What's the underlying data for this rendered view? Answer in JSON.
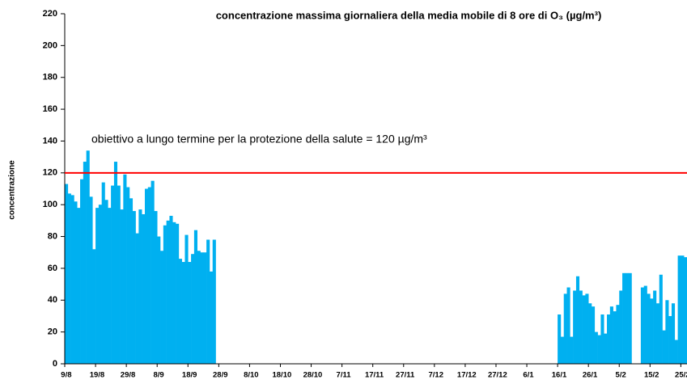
{
  "chart_data": {
    "type": "bar",
    "title": "concentrazione massima giornaliera della media mobile di 8 ore di O₃ (µg/m³)",
    "y_label": "concentrazione",
    "color": "#00b0f0",
    "reference_line": {
      "value": 120,
      "label": "obiettivo a lungo termine per la protezione della salute = 120 µg/m³",
      "color": "#ff0000"
    },
    "ylim": [
      0,
      220
    ],
    "yticks": [
      0,
      20,
      40,
      60,
      80,
      100,
      120,
      140,
      160,
      180,
      200,
      220
    ],
    "categories": [
      "9/8",
      null,
      null,
      null,
      null,
      null,
      null,
      null,
      null,
      null,
      "19/8",
      null,
      null,
      null,
      null,
      null,
      null,
      null,
      null,
      null,
      "29/8",
      null,
      null,
      null,
      null,
      null,
      null,
      null,
      null,
      null,
      "8/9",
      null,
      null,
      null,
      null,
      null,
      null,
      null,
      null,
      null,
      "18/9",
      null,
      null,
      null,
      null,
      null,
      null,
      null,
      null,
      null,
      "28/9",
      null,
      null,
      null,
      null,
      null,
      null,
      null,
      null,
      null,
      "8/10",
      null,
      null,
      null,
      null,
      null,
      null,
      null,
      null,
      null,
      "18/10",
      null,
      null,
      null,
      null,
      null,
      null,
      null,
      null,
      null,
      "28/10",
      null,
      null,
      null,
      null,
      null,
      null,
      null,
      null,
      null,
      "7/11",
      null,
      null,
      null,
      null,
      null,
      null,
      null,
      null,
      null,
      "17/11",
      null,
      null,
      null,
      null,
      null,
      null,
      null,
      null,
      null,
      "27/11",
      null,
      null,
      null,
      null,
      null,
      null,
      null,
      null,
      null,
      "7/12",
      null,
      null,
      null,
      null,
      null,
      null,
      null,
      null,
      null,
      "17/12",
      null,
      null,
      null,
      null,
      null,
      null,
      null,
      null,
      null,
      "27/12",
      null,
      null,
      null,
      null,
      null,
      null,
      null,
      null,
      null,
      "6/1",
      null,
      null,
      null,
      null,
      null,
      null,
      null,
      null,
      null,
      "16/1",
      null,
      null,
      null,
      null,
      null,
      null,
      null,
      null,
      null,
      "26/1",
      null,
      null,
      null,
      null,
      null,
      null,
      null,
      null,
      null,
      "5/2",
      null,
      null,
      null,
      null,
      null,
      null,
      null,
      null,
      null,
      "15/2",
      null,
      null,
      null,
      null,
      null,
      null,
      null,
      null,
      null,
      "25/2",
      null
    ],
    "values": [
      113,
      107,
      106,
      102,
      98,
      116,
      127,
      134,
      105,
      72,
      98,
      100,
      114,
      103,
      98,
      112,
      127,
      112,
      97,
      119,
      111,
      104,
      96,
      82,
      97,
      94,
      110,
      111,
      115,
      96,
      80,
      71,
      87,
      90,
      93,
      89,
      88,
      66,
      64,
      81,
      64,
      69,
      84,
      71,
      70,
      70,
      78,
      58,
      78,
      null,
      null,
      null,
      null,
      null,
      null,
      null,
      null,
      null,
      null,
      null,
      null,
      null,
      null,
      null,
      null,
      null,
      null,
      null,
      null,
      null,
      null,
      null,
      null,
      null,
      null,
      null,
      null,
      null,
      null,
      null,
      null,
      null,
      null,
      null,
      null,
      null,
      null,
      null,
      null,
      null,
      null,
      null,
      null,
      null,
      null,
      null,
      null,
      null,
      null,
      null,
      null,
      null,
      null,
      null,
      null,
      null,
      null,
      null,
      null,
      null,
      null,
      null,
      null,
      null,
      null,
      null,
      null,
      null,
      null,
      null,
      null,
      null,
      null,
      null,
      null,
      null,
      null,
      null,
      null,
      null,
      null,
      null,
      null,
      null,
      null,
      null,
      null,
      null,
      null,
      null,
      null,
      null,
      null,
      null,
      null,
      null,
      null,
      null,
      null,
      null,
      null,
      null,
      null,
      null,
      null,
      null,
      null,
      null,
      null,
      null,
      31,
      17,
      44,
      48,
      17,
      46,
      55,
      46,
      43,
      44,
      38,
      36,
      20,
      18,
      31,
      19,
      31,
      36,
      33,
      37,
      46,
      57,
      57,
      57,
      null,
      null,
      null,
      48,
      49,
      44,
      41,
      46,
      38,
      56,
      21,
      40,
      30,
      38,
      15,
      68,
      68,
      67
    ]
  }
}
